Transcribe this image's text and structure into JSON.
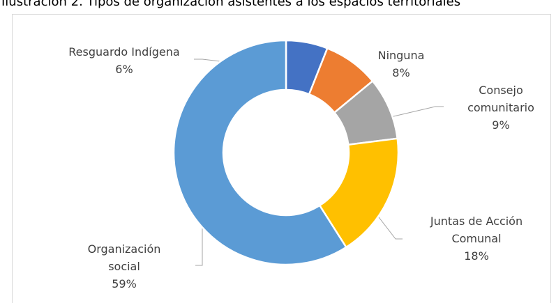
{
  "chart_data": {
    "type": "donut",
    "title": "Ilustración 2. Tipos de organización asistentes a los espacios territoriales",
    "categories": [
      "Resguardo Indígena",
      "Ninguna",
      "Consejo comunitario",
      "Juntas de Acción Comunal",
      "Organización social"
    ],
    "values": [
      6,
      8,
      9,
      18,
      59
    ],
    "value_labels": [
      "6%",
      "8%",
      "9%",
      "18%",
      "59%"
    ],
    "colors": [
      "#4472c4",
      "#ed7d31",
      "#a5a5a5",
      "#ffc000",
      "#5b9bd5"
    ]
  }
}
